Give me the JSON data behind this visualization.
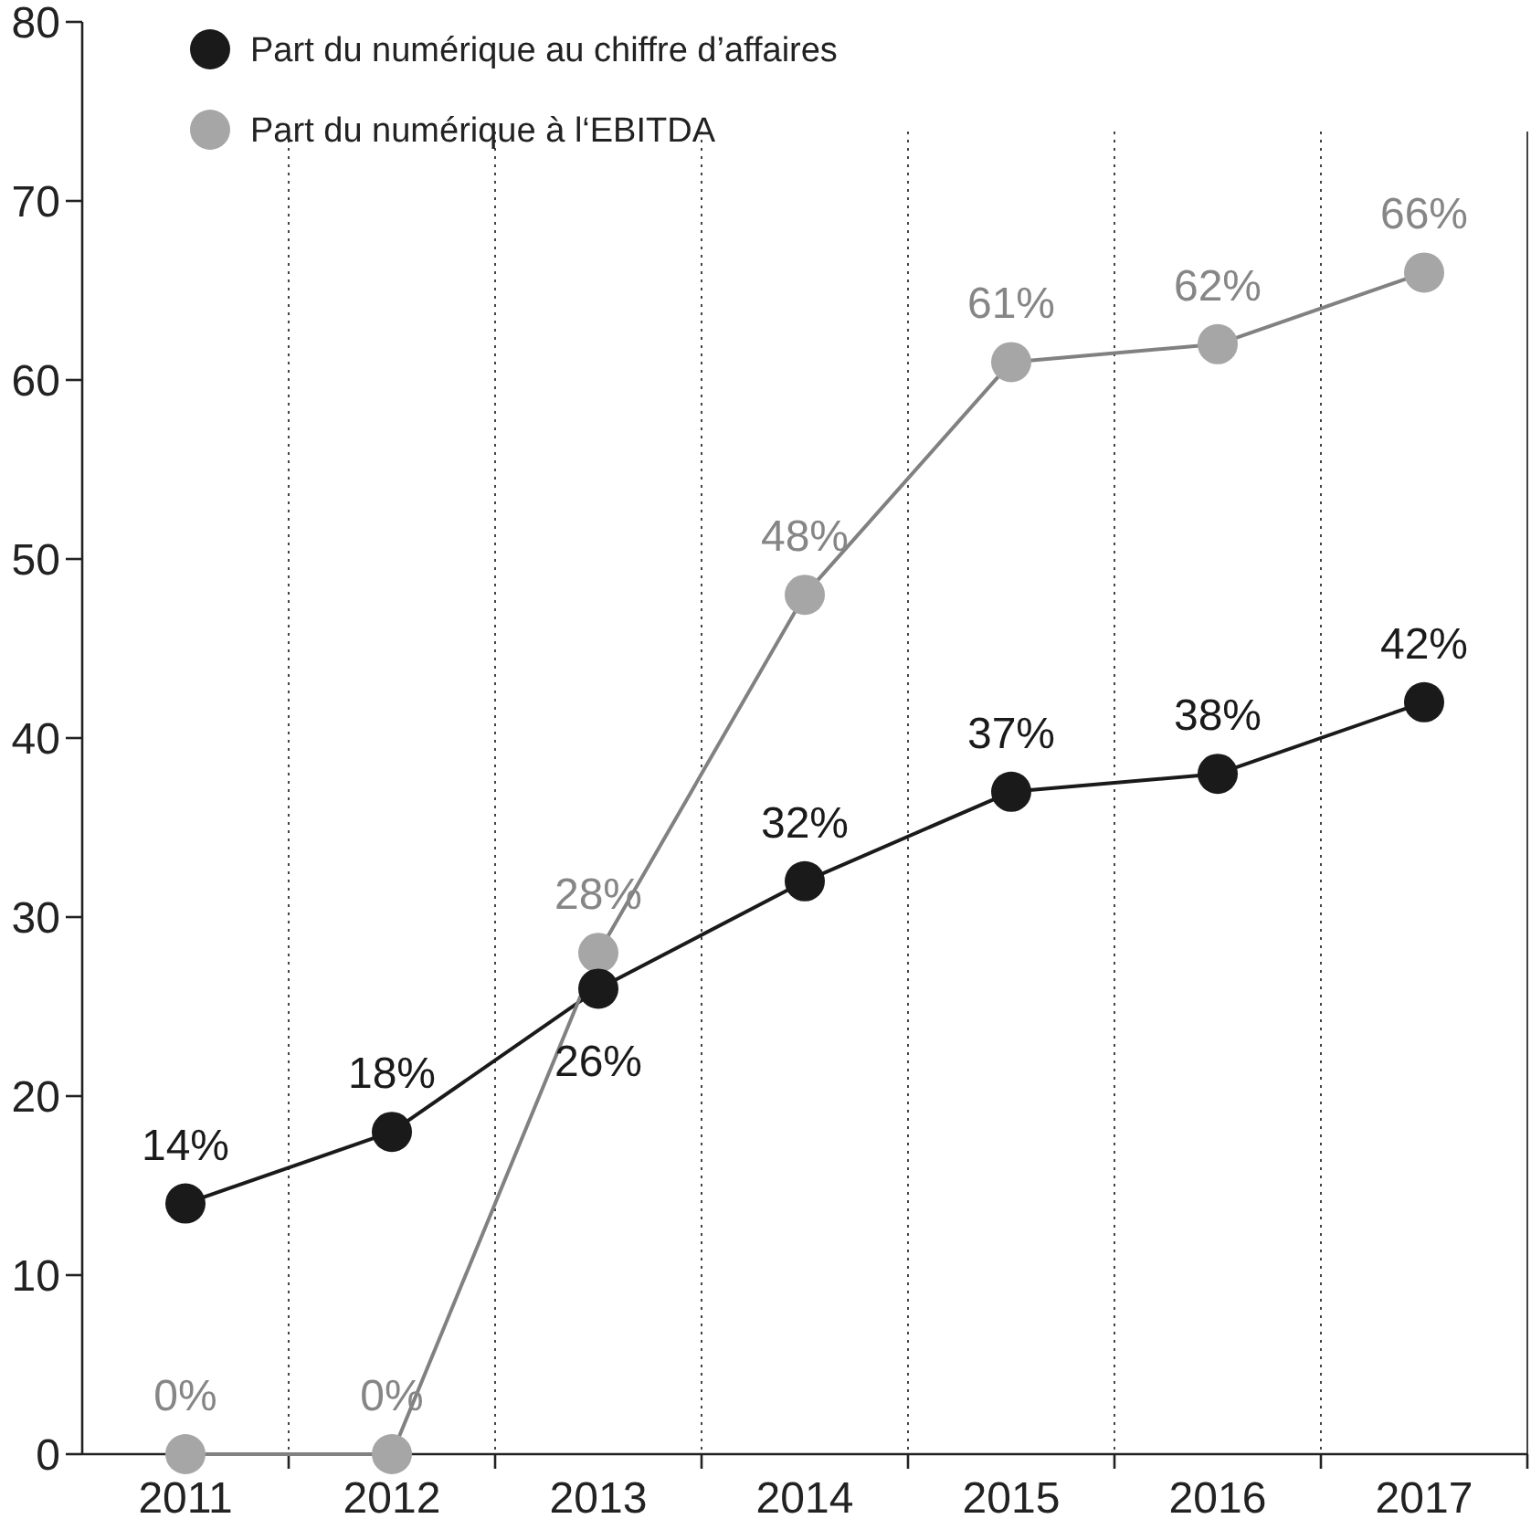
{
  "chart_data": {
    "type": "line",
    "categories": [
      "2011",
      "2012",
      "2013",
      "2014",
      "2015",
      "2016",
      "2017"
    ],
    "series": [
      {
        "name": "Part du numérique au chiffre d’affaires",
        "color": "#1a1a1a",
        "values": [
          14,
          18,
          26,
          32,
          37,
          38,
          42
        ],
        "value_labels": [
          "14%",
          "18%",
          "26%",
          "32%",
          "37%",
          "38%",
          "42%"
        ]
      },
      {
        "name": "Part du numérique à l‘EBITDA",
        "color": "#a6a6a6",
        "values": [
          0,
          0,
          28,
          48,
          61,
          62,
          66
        ],
        "value_labels": [
          "0%",
          "0%",
          "28%",
          "48%",
          "61%",
          "62%",
          "66%"
        ]
      }
    ],
    "ylim": [
      0,
      80
    ],
    "yticks": [
      0,
      10,
      20,
      30,
      40,
      50,
      60,
      70,
      80
    ],
    "grid": "x",
    "legend": "top left",
    "marker": "circle",
    "line_style": "solid"
  }
}
